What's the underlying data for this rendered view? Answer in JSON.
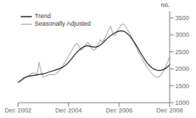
{
  "chart_data": {
    "type": "line",
    "ylabel": "no.",
    "categories": [
      "Dec 2002",
      null,
      null,
      null,
      null,
      null,
      null,
      null,
      null,
      null,
      null,
      null,
      null,
      null,
      null,
      null,
      null,
      null,
      null,
      null,
      null,
      null,
      null,
      null,
      "Dec 2004",
      null,
      null,
      null,
      null,
      null,
      null,
      null,
      null,
      null,
      null,
      null,
      null,
      null,
      null,
      null,
      null,
      null,
      null,
      null,
      null,
      null,
      null,
      null,
      "Dec 2006",
      null,
      null,
      null,
      null,
      null,
      null,
      null,
      null,
      null,
      null,
      null,
      null,
      null,
      null,
      null,
      null,
      null,
      null,
      null,
      null,
      null,
      null,
      null,
      "Dec 2008"
    ],
    "series": [
      {
        "name": "Trend",
        "color": "#000000",
        "values": [
          1600,
          1640,
          1680,
          1730,
          1760,
          1780,
          1790,
          1800,
          1810,
          1820,
          1830,
          1840,
          1850,
          1870,
          1890,
          1910,
          1930,
          1950,
          1970,
          1990,
          2010,
          2040,
          2080,
          2130,
          2190,
          2260,
          2340,
          2420,
          2490,
          2550,
          2600,
          2640,
          2670,
          2680,
          2670,
          2650,
          2640,
          2640,
          2660,
          2700,
          2750,
          2810,
          2870,
          2930,
          2980,
          3020,
          3060,
          3090,
          3110,
          3120,
          3110,
          3080,
          3030,
          2970,
          2890,
          2800,
          2700,
          2600,
          2490,
          2390,
          2290,
          2200,
          2120,
          2060,
          2010,
          1980,
          1960,
          1950,
          1960,
          1980,
          2010,
          2060,
          2120
        ]
      },
      {
        "name": "Seasonally Adjusted",
        "color": "#aaaaaa",
        "values": [
          1590,
          1640,
          1700,
          1750,
          1760,
          1800,
          1840,
          1880,
          1870,
          1830,
          2200,
          1900,
          1750,
          1780,
          1820,
          1830,
          1830,
          1820,
          1850,
          1900,
          1970,
          2050,
          2180,
          2270,
          2380,
          2480,
          2600,
          2700,
          2750,
          2650,
          2550,
          2600,
          2700,
          2780,
          2720,
          2580,
          2550,
          2600,
          2720,
          2850,
          2800,
          2880,
          3000,
          3150,
          3250,
          3050,
          2980,
          3100,
          3200,
          3300,
          3320,
          3250,
          3150,
          3050,
          2920,
          2780,
          2650,
          2520,
          2400,
          2280,
          2180,
          2080,
          1980,
          1900,
          1820,
          1780,
          1750,
          1770,
          1830,
          1920,
          2050,
          2200,
          2350
        ]
      }
    ],
    "ylim": [
      1000,
      3700
    ],
    "yticks": [
      1000,
      1500,
      2000,
      2500,
      3000,
      3500
    ],
    "legend": "upper left"
  }
}
